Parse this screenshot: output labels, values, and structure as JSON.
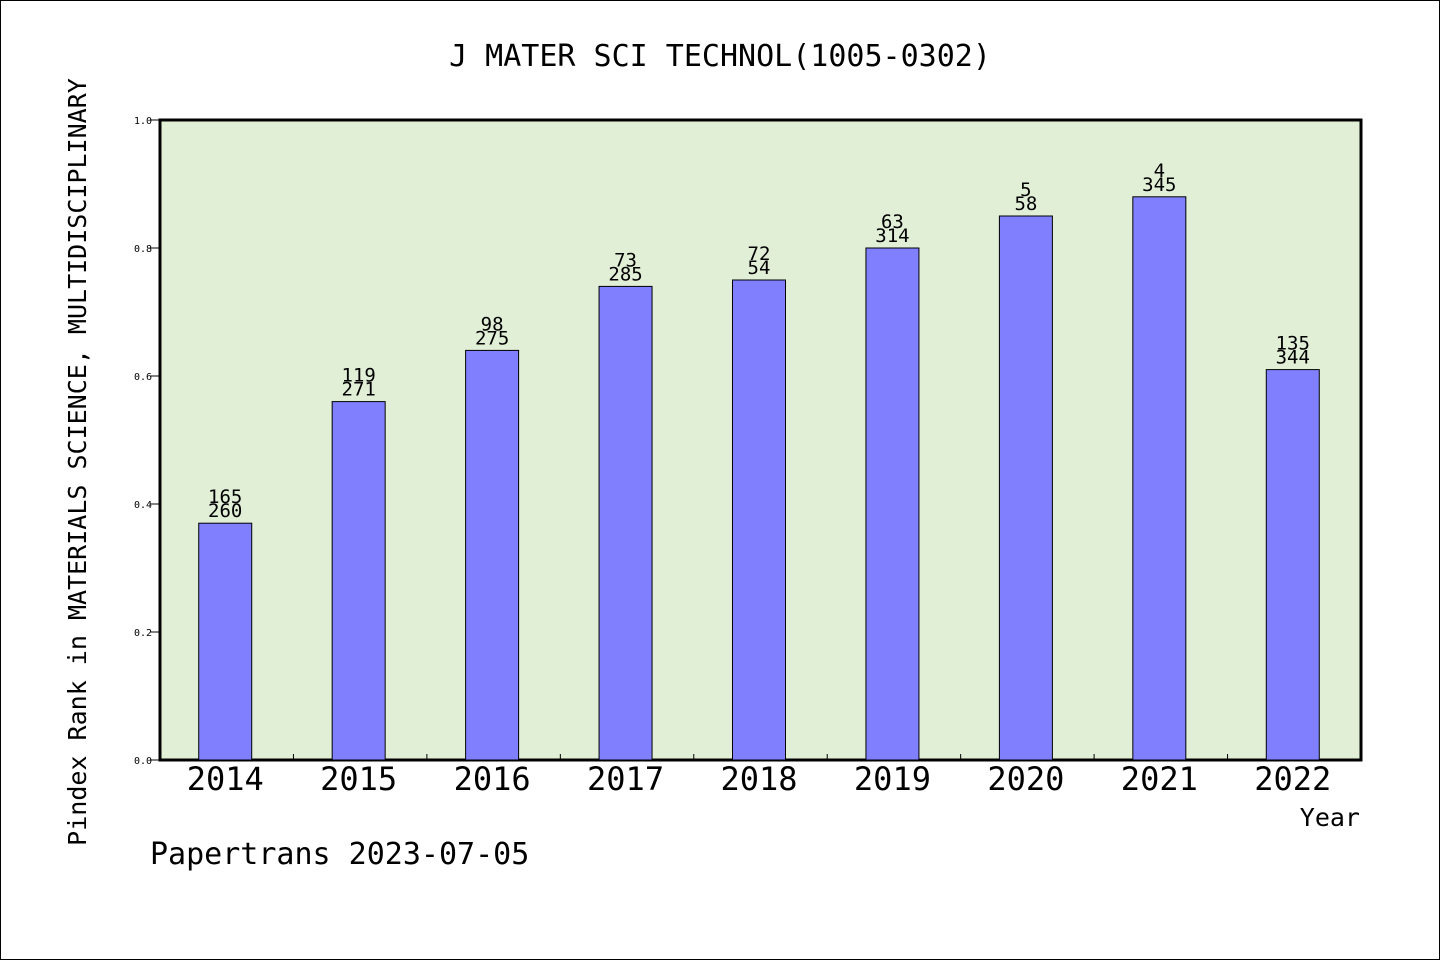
{
  "chart_data": {
    "type": "bar",
    "title": "J MATER SCI TECHNOL(1005-0302)",
    "ylabel": "Pindex Rank in MATERIALS SCIENCE, MULTIDISCIPLINARY",
    "xlabel": "Year",
    "credit": "Papertrans 2023-07-05",
    "categories": [
      "2014",
      "2015",
      "2016",
      "2017",
      "2018",
      "2019",
      "2020",
      "2021",
      "2022"
    ],
    "values": [
      0.37,
      0.56,
      0.64,
      0.74,
      0.75,
      0.8,
      0.85,
      0.88,
      0.61
    ],
    "labels_top": [
      "165",
      "119",
      "98",
      "73",
      "72",
      "63",
      "5",
      "4",
      "135"
    ],
    "labels_bottom": [
      "260",
      "271",
      "275",
      "285",
      "54",
      "314",
      "58",
      "345",
      "344"
    ],
    "ylim": [
      0,
      1.0
    ],
    "yticks": [
      "0.0",
      "0.2",
      "0.4",
      "0.6",
      "0.8",
      "1.0"
    ],
    "grid": false,
    "colors": {
      "plot_bg": "#e2efd7",
      "bar_fill": "#8080ff",
      "bar_stroke": "#000000"
    }
  }
}
